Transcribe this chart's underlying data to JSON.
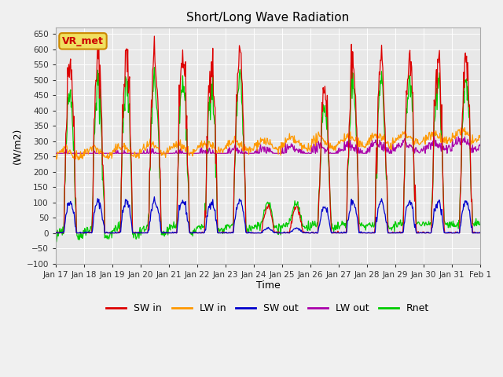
{
  "title": "Short/Long Wave Radiation",
  "xlabel": "Time",
  "ylabel": "(W/m2)",
  "ylim": [
    -100,
    670
  ],
  "yticks": [
    -100,
    -50,
    0,
    50,
    100,
    150,
    200,
    250,
    300,
    350,
    400,
    450,
    500,
    550,
    600,
    650
  ],
  "annotation_text": "VR_met",
  "annotation_bg": "#f0e060",
  "annotation_border": "#cc8800",
  "line_colors": {
    "SW_in": "#dd0000",
    "LW_in": "#ff9900",
    "SW_out": "#0000cc",
    "LW_out": "#aa00aa",
    "Rnet": "#00cc00"
  },
  "legend_labels": [
    "SW in",
    "LW in",
    "SW out",
    "LW out",
    "Rnet"
  ],
  "plot_bg": "#e8e8e8",
  "fig_bg": "#f0f0f0",
  "n_days": 16,
  "start_day": 17,
  "xtick_labels": [
    "Jan 17",
    "Jan 18",
    "Jan 19",
    "Jan 20",
    "Jan 21",
    "Jan 22",
    "Jan 23",
    "Jan 24",
    "Jan 25",
    "Jan 26",
    "Jan 27",
    "Jan 28",
    "Jan 29",
    "Jan 30",
    "Jan 31",
    "Feb 1"
  ],
  "xtick_positions": [
    0,
    1,
    2,
    3,
    4,
    5,
    6,
    7,
    8,
    9,
    10,
    11,
    12,
    13,
    14,
    15
  ]
}
